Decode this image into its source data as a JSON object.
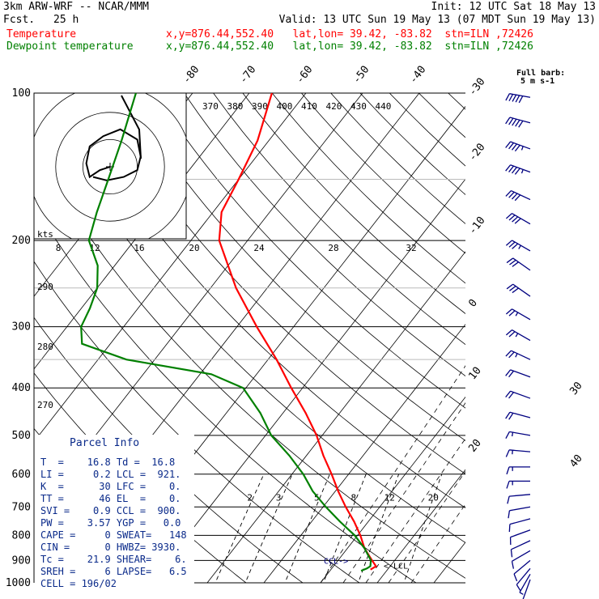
{
  "header": {
    "model": "3km ARW-WRF -- NCAR/MMM",
    "init": "Init: 12 UTC Sat 18 May 13",
    "fcst_label": "Fcst.",
    "fcst_value": "25 h",
    "valid": "Valid: 13 UTC Sun 19 May 13 (07 MDT Sun 19 May 13)",
    "temp_label": "Temperature",
    "temp_info": "x,y=876.44,552.40   lat,lon= 39.42, -83.82  stn=ILN ,72426",
    "dew_label": "Dewpoint temperature",
    "dew_info": "x,y=876.44,552.40   lat,lon= 39.42, -83.82  stn=ILN ,72426"
  },
  "colors": {
    "temperature": "#ff0000",
    "dewpoint": "#008000",
    "barbs": "#000080",
    "grid": "#000000"
  },
  "wind_legend": {
    "title": "Full barb:",
    "value": "5 m s-1"
  },
  "hodograph": {
    "units_label": "kts"
  },
  "parcel_info": {
    "title": "Parcel Info",
    "rows": [
      "T  =    16.8 Td =  16.8",
      "LI =     0.2 LCL =  921.",
      "K  =      30 LFC =    0.",
      "TT =      46 EL  =    0.",
      "SVI =    0.9 CCL =  900.",
      "PW =    3.57 YGP =   0.0",
      "CAPE =     0 SWEAT=   148",
      "CIN =      0 HWBZ= 3930.",
      "Tc =    21.9 SHEAR=    6.",
      "SREH =     6 LAPSE=   6.5",
      "CELL = 196/02"
    ]
  },
  "chart_data": {
    "type": "line",
    "title": "",
    "y_axis": {
      "scale": "log",
      "label": "",
      "ticks": [
        100,
        200,
        300,
        400,
        500,
        600,
        700,
        800,
        900,
        1000
      ],
      "range": [
        100,
        1000
      ]
    },
    "isotherm_labels": [
      "-80",
      "-70",
      "-60",
      "-50",
      "-40",
      "-30",
      "-20",
      "-10",
      "0",
      "10",
      "20",
      "30",
      "40"
    ],
    "theta_e_labels": [
      "370",
      "380",
      "390",
      "400",
      "410",
      "420",
      "430",
      "440"
    ],
    "theta_labels": [
      "290",
      "280",
      "270"
    ],
    "mixing_ratio_labels": [
      "2",
      "3",
      "5",
      "8",
      "12",
      "20"
    ],
    "hodo_speed_labels": [
      "8",
      "12",
      "16",
      "20",
      "24",
      "28",
      "32"
    ],
    "parcel_labels": [
      "CCL",
      "LCL"
    ],
    "series": [
      {
        "name": "Temperature",
        "pressure": [
          940,
          925,
          900,
          850,
          800,
          750,
          700,
          650,
          600,
          550,
          500,
          450,
          400,
          350,
          300,
          250,
          200,
          175,
          150,
          125,
          100
        ],
        "temperature": [
          17.0,
          17.5,
          16.0,
          13.0,
          10.5,
          7.5,
          4.0,
          0.5,
          -3.0,
          -7.0,
          -11.0,
          -16.0,
          -22.0,
          -28.5,
          -36.5,
          -45.5,
          -55.0,
          -58.5,
          -60.0,
          -62.0,
          -66.0
        ]
      },
      {
        "name": "Dewpoint temperature",
        "pressure": [
          945,
          935,
          925,
          900,
          850,
          800,
          750,
          700,
          650,
          600,
          550,
          500,
          450,
          400,
          375,
          350,
          325,
          300,
          275,
          250,
          225,
          200,
          175,
          150,
          125,
          100
        ],
        "temperature": [
          15.5,
          16.2,
          16.5,
          15.8,
          13.0,
          9.5,
          5.0,
          0.5,
          -4.0,
          -8.0,
          -13.0,
          -19.0,
          -24.0,
          -30.5,
          -38.0,
          -55.0,
          -65.0,
          -67.5,
          -68.5,
          -70.0,
          -73.0,
          -78.0,
          -80.5,
          -83.0,
          -86.0,
          -90.0
        ]
      }
    ],
    "wind_barbs": {
      "pressure": [
        985,
        960,
        935,
        900,
        860,
        820,
        780,
        740,
        700,
        660,
        620,
        580,
        540,
        500,
        460,
        420,
        380,
        350,
        320,
        290,
        260,
        230,
        210,
        185,
        165,
        145,
        130,
        115,
        102
      ],
      "direction_deg": [
        200,
        210,
        220,
        230,
        240,
        245,
        250,
        255,
        260,
        265,
        270,
        270,
        275,
        280,
        285,
        290,
        290,
        295,
        300,
        300,
        305,
        305,
        300,
        300,
        295,
        290,
        290,
        285,
        280
      ],
      "speed_ms": [
        3,
        4,
        5,
        5,
        5,
        6,
        6,
        6,
        7,
        7,
        8,
        8,
        9,
        9,
        10,
        11,
        12,
        13,
        13,
        14,
        15,
        17,
        18,
        20,
        22,
        23,
        24,
        25,
        25
      ]
    },
    "hodograph_trace": {
      "u_kt": [
        0,
        -3,
        -6,
        -7,
        -6,
        -2,
        3,
        8,
        9,
        8,
        4,
        -1,
        -5
      ],
      "v_kt": [
        0,
        -1,
        -3,
        1,
        6,
        9,
        11,
        8,
        3,
        -1,
        -3,
        -4,
        -3
      ]
    }
  }
}
